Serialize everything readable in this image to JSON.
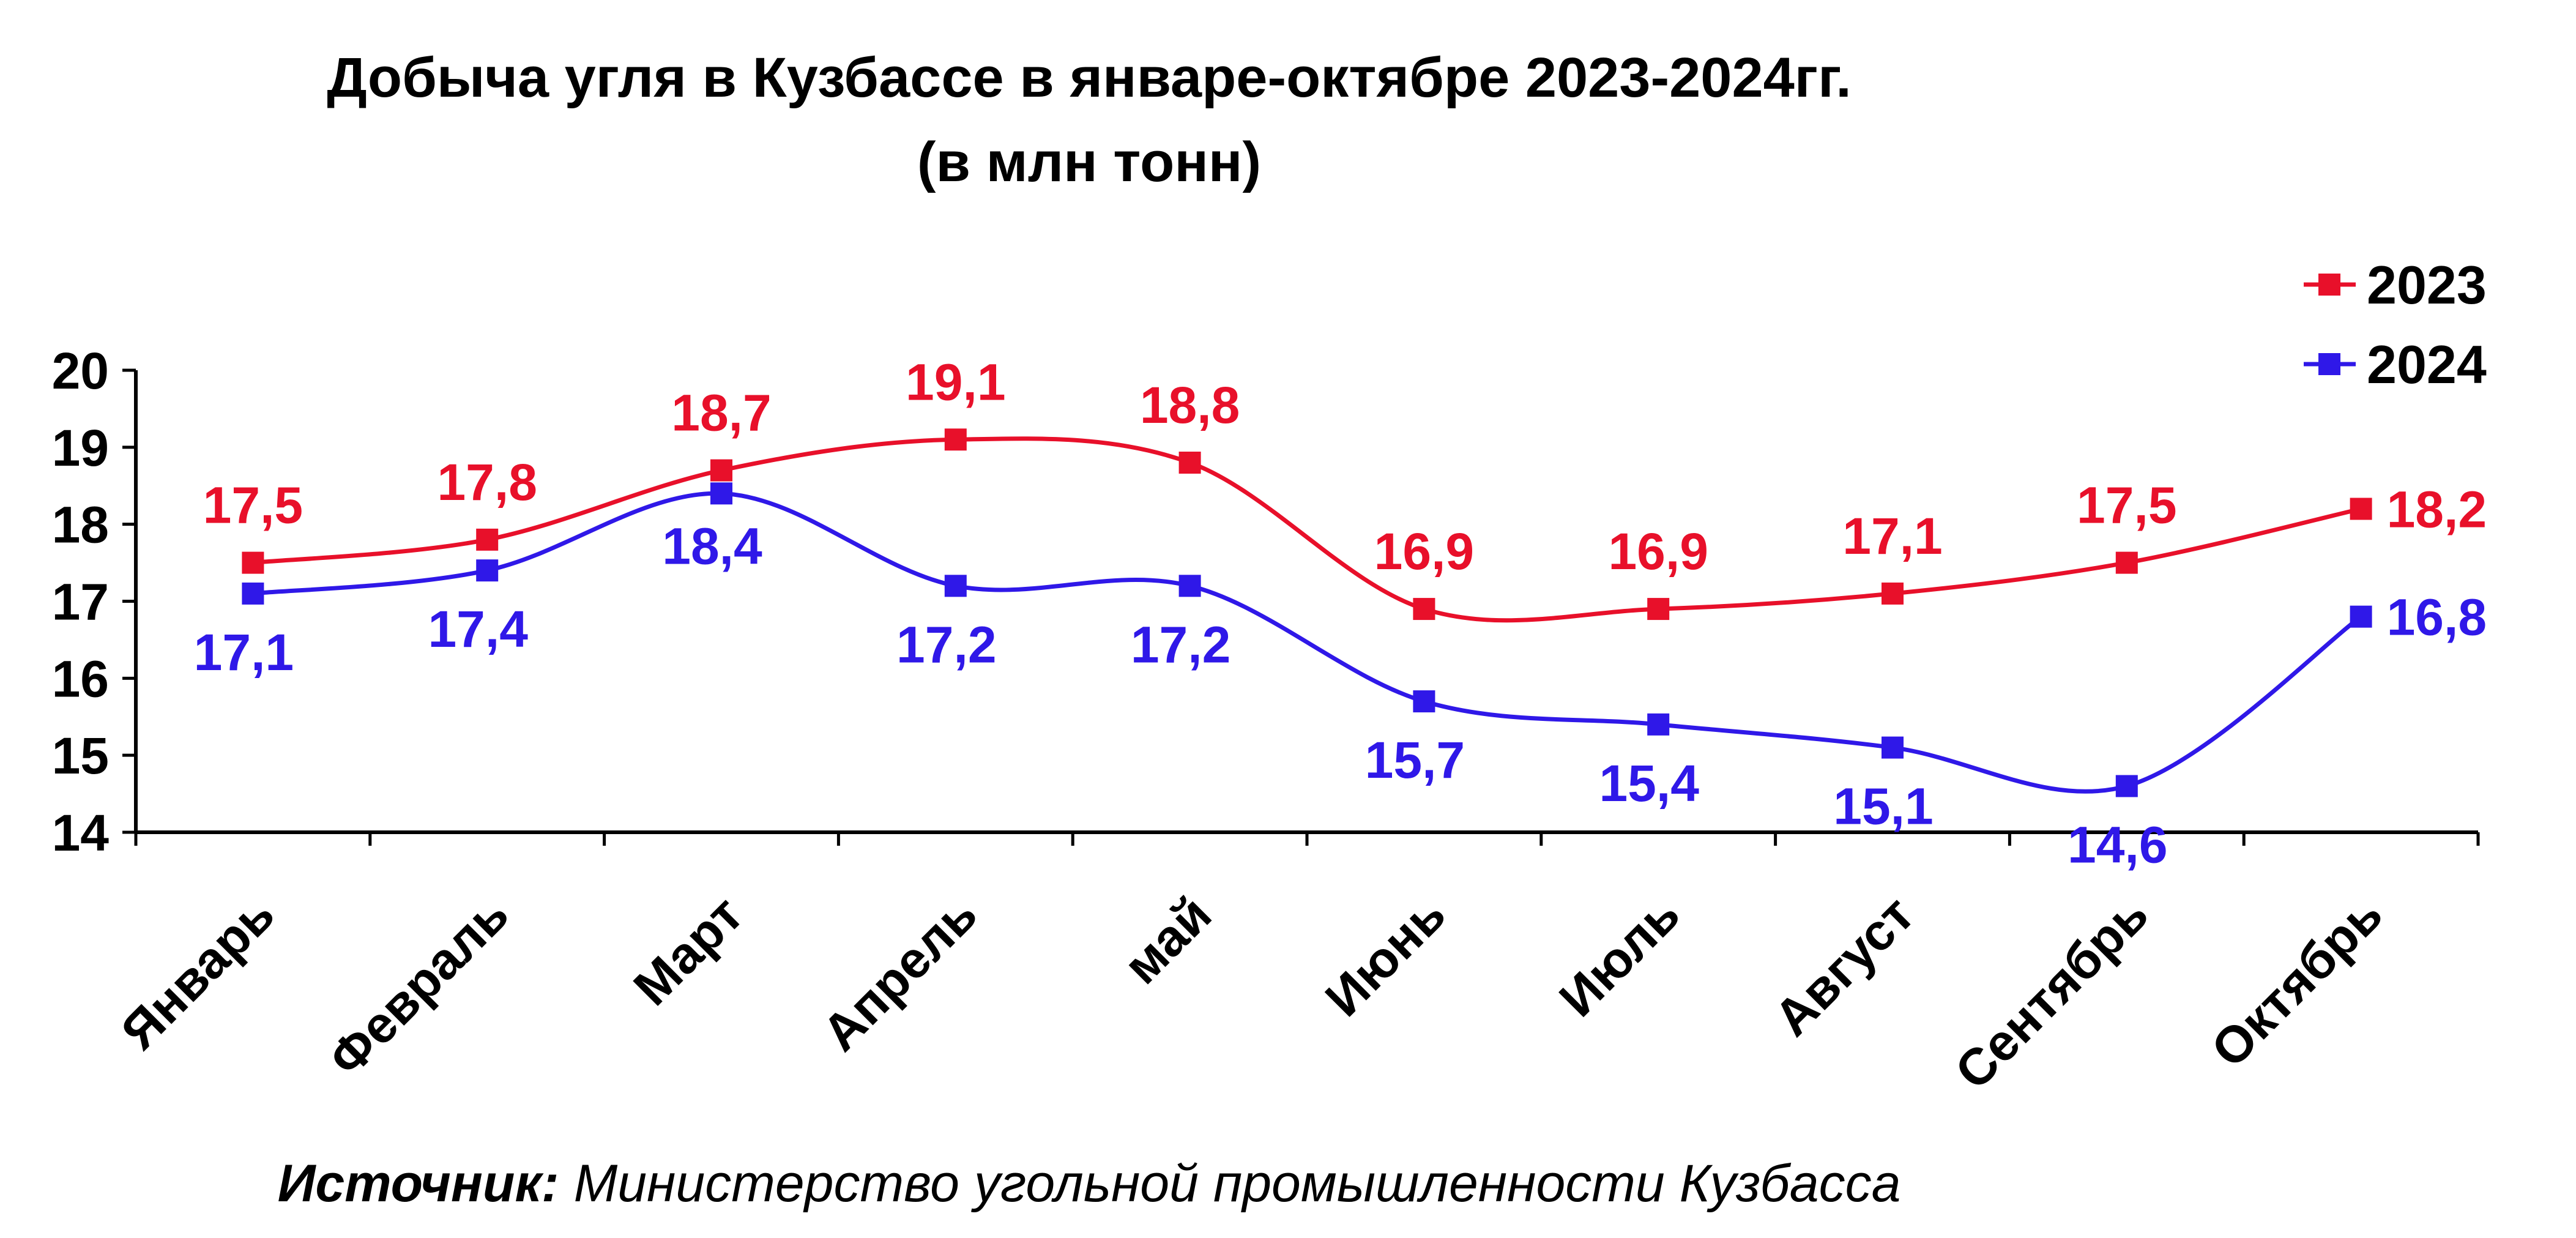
{
  "chart_data": {
    "type": "line",
    "title": "Добыча угля в Кузбассе в январе-октябре 2023-2024гг.",
    "subtitle": "(в млн тонн)",
    "categories": [
      "Январь",
      "Февраль",
      "Март",
      "Апрель",
      "май",
      "Июнь",
      "Июль",
      "Август",
      "Сентябрь",
      "Октябрь"
    ],
    "series": [
      {
        "name": "2023",
        "color": "#e8102a",
        "values": [
          17.5,
          17.8,
          18.7,
          19.1,
          18.8,
          16.9,
          16.9,
          17.1,
          17.5,
          18.2
        ],
        "labels": [
          "17,5",
          "17,8",
          "18,7",
          "19,1",
          "18,8",
          "16,9",
          "16,9",
          "17,1",
          "17,5",
          "18,2"
        ]
      },
      {
        "name": "2024",
        "color": "#2f18e8",
        "values": [
          17.1,
          17.4,
          18.4,
          17.2,
          17.2,
          15.7,
          15.4,
          15.1,
          14.6,
          16.8
        ],
        "labels": [
          "17,1",
          "17,4",
          "18,4",
          "17,2",
          "17,2",
          "15,7",
          "15,4",
          "15,1",
          "14,6",
          "16,8"
        ]
      }
    ],
    "ylim": [
      14,
      20
    ],
    "yticks": [
      14,
      15,
      16,
      17,
      18,
      19,
      20
    ],
    "grid": false,
    "legend": "top-right",
    "smooth": true,
    "source_label": "Источник:",
    "source_text": "Министерство угольной промышленности Кузбасса"
  }
}
